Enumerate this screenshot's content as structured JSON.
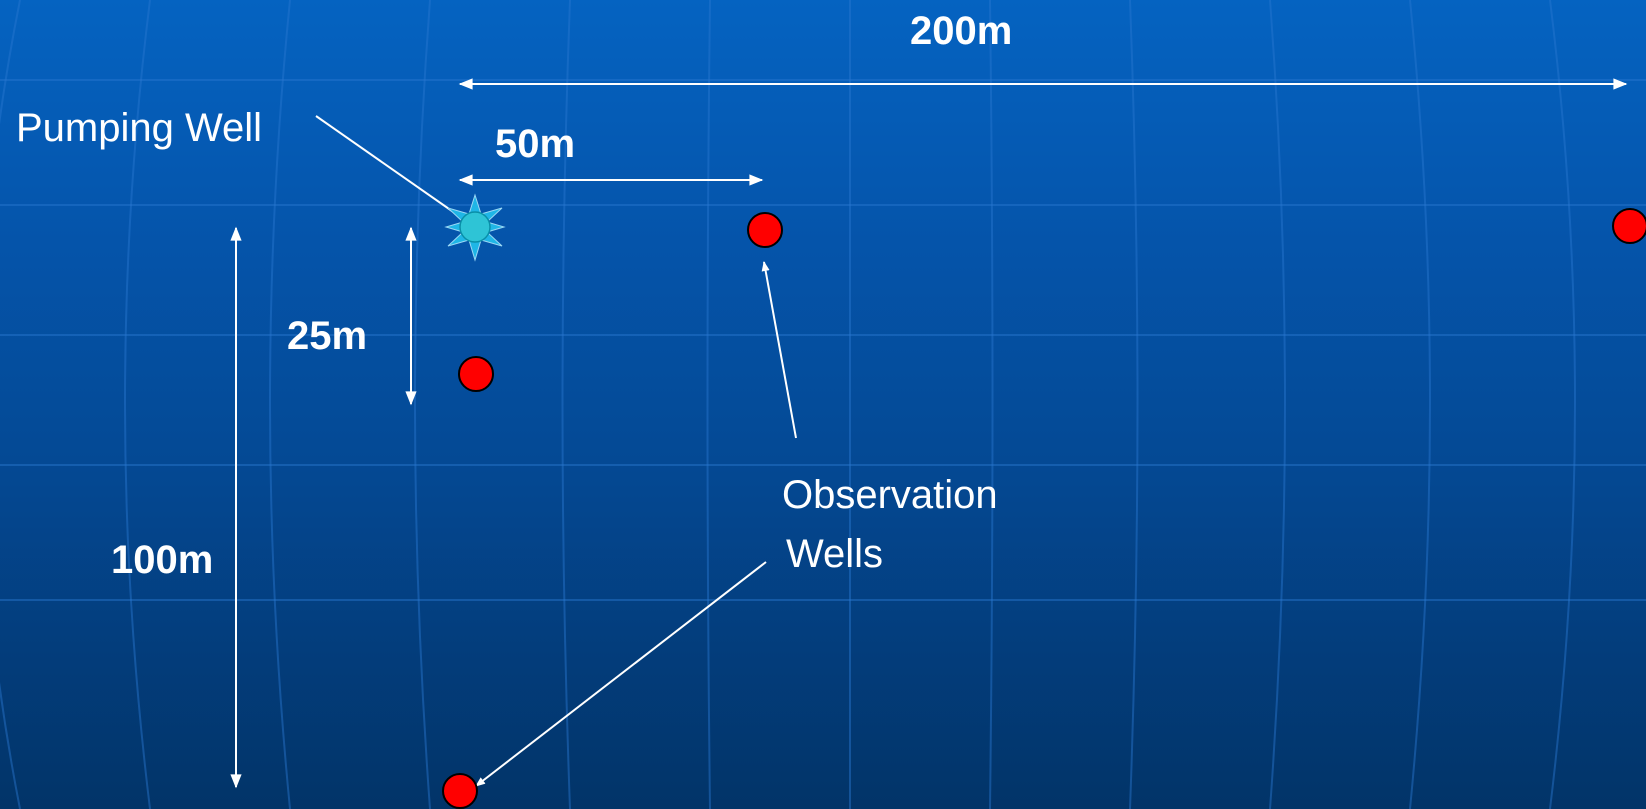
{
  "labels": {
    "pumping_well": "Pumping Well",
    "observation_wells_line1": "Observation",
    "observation_wells_line2": "Wells"
  },
  "dimensions": {
    "d200": "200m",
    "d50": "50m",
    "d25": "25m",
    "d100": "100m"
  },
  "colors": {
    "background_top": "#0563c1",
    "background_bottom": "#023468",
    "observation_well": "#ff0000",
    "pumping_well": "#2ec4d6",
    "arrow": "#ffffff",
    "text": "#ffffff"
  }
}
